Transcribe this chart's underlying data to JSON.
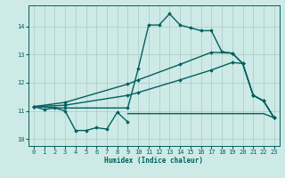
{
  "bg_color": "#ceeae6",
  "grid_color": "#b0ceca",
  "line_color": "#006060",
  "xlabel": "Humidex (Indice chaleur)",
  "xlim": [
    -0.5,
    23.5
  ],
  "ylim": [
    9.75,
    14.75
  ],
  "yticks": [
    10,
    11,
    12,
    13,
    14
  ],
  "xticks": [
    0,
    1,
    2,
    3,
    4,
    5,
    6,
    7,
    8,
    9,
    10,
    11,
    12,
    13,
    14,
    15,
    16,
    17,
    18,
    19,
    20,
    21,
    22,
    23
  ],
  "series": [
    {
      "x": [
        0,
        1,
        2,
        3,
        4,
        5,
        6,
        7,
        8,
        9
      ],
      "y": [
        11.15,
        11.05,
        11.1,
        11.0,
        10.3,
        10.3,
        10.4,
        10.35,
        10.95,
        10.6
      ],
      "marker": "D",
      "markersize": 1.8,
      "lw": 1.0
    },
    {
      "x": [
        9,
        10,
        11,
        12,
        13,
        14,
        15,
        16,
        17,
        18,
        19,
        20,
        21,
        22,
        23
      ],
      "y": [
        10.9,
        10.9,
        10.9,
        10.9,
        10.9,
        10.9,
        10.9,
        10.9,
        10.9,
        10.9,
        10.9,
        10.9,
        10.9,
        10.9,
        10.75
      ],
      "marker": null,
      "markersize": 0,
      "lw": 1.0
    },
    {
      "x": [
        0,
        3,
        9,
        10,
        14,
        17,
        19,
        20,
        21,
        22,
        23
      ],
      "y": [
        11.15,
        11.2,
        11.55,
        11.65,
        12.1,
        12.45,
        12.72,
        12.68,
        11.55,
        11.35,
        10.75
      ],
      "marker": "D",
      "markersize": 1.8,
      "lw": 1.0
    },
    {
      "x": [
        0,
        3,
        9,
        10,
        14,
        17,
        19,
        20,
        21,
        22,
        23
      ],
      "y": [
        11.15,
        11.3,
        11.95,
        12.1,
        12.65,
        13.08,
        13.05,
        12.68,
        11.55,
        11.35,
        10.75
      ],
      "marker": "D",
      "markersize": 1.8,
      "lw": 1.0
    },
    {
      "x": [
        0,
        3,
        9,
        10,
        11,
        12,
        13,
        14,
        15,
        16,
        17,
        18,
        19,
        20,
        21,
        22,
        23
      ],
      "y": [
        11.15,
        11.1,
        11.1,
        12.5,
        14.05,
        14.05,
        14.45,
        14.05,
        13.95,
        13.85,
        13.85,
        13.1,
        13.05,
        12.68,
        11.55,
        11.35,
        10.75
      ],
      "marker": "D",
      "markersize": 1.8,
      "lw": 1.0
    }
  ]
}
